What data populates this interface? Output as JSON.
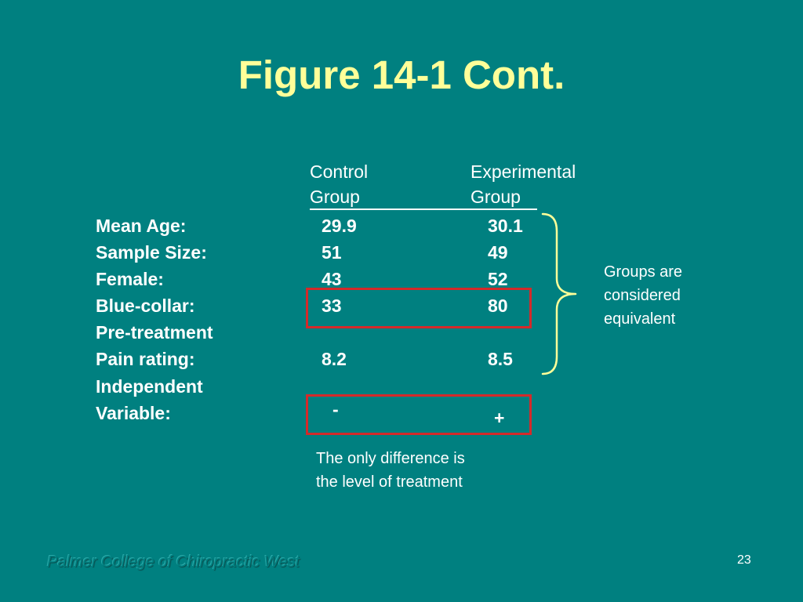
{
  "slide": {
    "title": "Figure 14-1 Cont.",
    "page_number": "23",
    "footer": "Palmer College of Chiropractic West",
    "colors": {
      "background": "#008080",
      "title": "#ffff99",
      "text": "#ffffff",
      "highlight_box": "#d42a2a",
      "brace": "#ffff99"
    }
  },
  "table": {
    "headers": {
      "control_line1": "Control",
      "control_line2": "Group",
      "experimental_line1": "Experimental",
      "experimental_line2": "Group"
    },
    "rows": [
      {
        "label": "Mean Age:",
        "control": "29.9",
        "experimental": "30.1"
      },
      {
        "label": "Sample Size:",
        "control": "51",
        "experimental": "49"
      },
      {
        "label": "Female:",
        "control": "43",
        "experimental": "52"
      },
      {
        "label": "Blue-collar:",
        "control": "33",
        "experimental": "80"
      },
      {
        "label": "Pre-treatment",
        "control": "",
        "experimental": ""
      },
      {
        "label": "Pain rating:",
        "control": "8.2",
        "experimental": "8.5"
      },
      {
        "label": "Independent",
        "control": "",
        "experimental": ""
      },
      {
        "label": "Variable:",
        "control": "-",
        "experimental": "+"
      }
    ]
  },
  "annotations": {
    "groups_equivalent": [
      "Groups are",
      "considered",
      "equivalent"
    ],
    "only_difference": [
      "The only difference is",
      "the level of treatment"
    ]
  }
}
